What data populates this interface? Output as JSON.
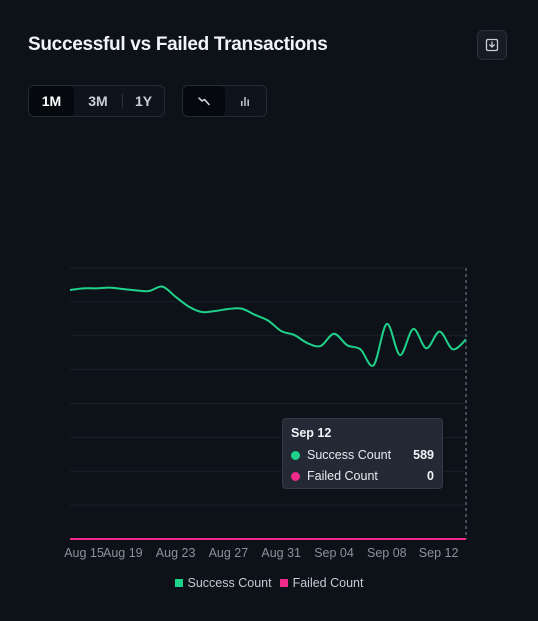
{
  "title": "Successful vs Failed Transactions",
  "icons": {
    "download": "download-icon",
    "line": "line-chart-icon",
    "bar": "bar-chart-icon"
  },
  "range_options": [
    "1M",
    "3M",
    "1Y"
  ],
  "active_range": "1M",
  "active_chart_type": "line",
  "colors": {
    "success": "#1fd18a",
    "failed": "#ee2a8b",
    "background": "#0d1118"
  },
  "tooltip": {
    "date": "Sep 12",
    "rows": [
      {
        "label": "Success Count",
        "value": "589"
      },
      {
        "label": "Failed Count",
        "value": "0"
      }
    ]
  },
  "legend": [
    "Success Count",
    "Failed Count"
  ],
  "chart_data": {
    "type": "line",
    "x_ticks": [
      "Aug 15",
      "Aug 19",
      "Aug 23",
      "Aug 27",
      "Aug 31",
      "Sep 04",
      "Sep 08",
      "Sep 12"
    ],
    "grid": true,
    "legend_position": "bottom-center",
    "series": [
      {
        "name": "Success Count",
        "values": [
          [
            0,
            735
          ],
          [
            1,
            740
          ],
          [
            2,
            740
          ],
          [
            3,
            742
          ],
          [
            4,
            738
          ],
          [
            5,
            734
          ],
          [
            6,
            732
          ],
          [
            7,
            745
          ],
          [
            8,
            715
          ],
          [
            9,
            686
          ],
          [
            10,
            670
          ],
          [
            11,
            673
          ],
          [
            12,
            679
          ],
          [
            13,
            680
          ],
          [
            14,
            662
          ],
          [
            15,
            645
          ],
          [
            16,
            614
          ],
          [
            17,
            602
          ],
          [
            18,
            578
          ],
          [
            19,
            570
          ],
          [
            20,
            606
          ],
          [
            21,
            572
          ],
          [
            22,
            560
          ],
          [
            23,
            513
          ],
          [
            24,
            635
          ],
          [
            25,
            543
          ],
          [
            26,
            620
          ],
          [
            27,
            563
          ],
          [
            28,
            612
          ],
          [
            29,
            560
          ],
          [
            30,
            589
          ]
        ]
      },
      {
        "name": "Failed Count",
        "values": [
          [
            0,
            0
          ],
          [
            1,
            0
          ],
          [
            2,
            0
          ],
          [
            3,
            0
          ],
          [
            4,
            0
          ],
          [
            5,
            0
          ],
          [
            6,
            0
          ],
          [
            7,
            0
          ],
          [
            8,
            0
          ],
          [
            9,
            0
          ],
          [
            10,
            0
          ],
          [
            11,
            0
          ],
          [
            12,
            0
          ],
          [
            13,
            0
          ],
          [
            14,
            0
          ],
          [
            15,
            0
          ],
          [
            16,
            0
          ],
          [
            17,
            0
          ],
          [
            18,
            0
          ],
          [
            19,
            0
          ],
          [
            20,
            0
          ],
          [
            21,
            0
          ],
          [
            22,
            0
          ],
          [
            23,
            0
          ],
          [
            24,
            0
          ],
          [
            25,
            0
          ],
          [
            26,
            0
          ],
          [
            27,
            0
          ],
          [
            28,
            0
          ],
          [
            29,
            0
          ],
          [
            30,
            0
          ]
        ]
      }
    ],
    "ylim": [
      0,
      800
    ],
    "y_grid_count": 8
  }
}
